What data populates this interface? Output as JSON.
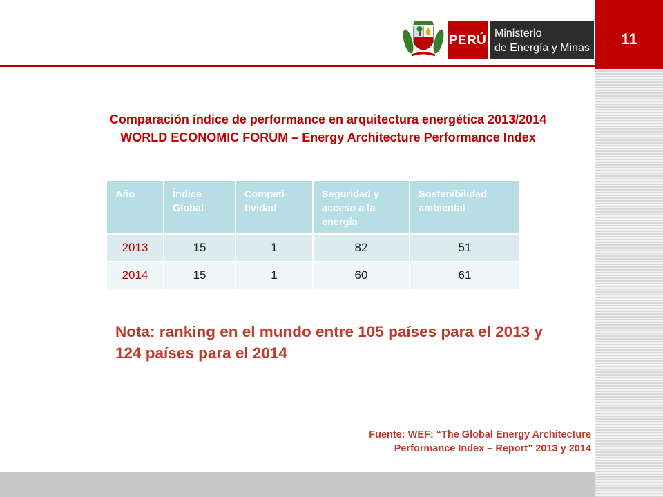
{
  "header": {
    "page_number": "11",
    "logo_country": "PERÚ",
    "logo_ministry_line1": "Ministerio",
    "logo_ministry_line2": "de Energía y Minas"
  },
  "titles": {
    "line1": "Comparación índice de performance en arquitectura energética 2013/2014",
    "line2": "WORLD ECONOMIC FORUM – Energy Architecture Performance Index"
  },
  "table": {
    "columns": [
      "Año",
      "Índice Global",
      "Competi-tividad",
      "Seguridad y acceso a la energía",
      "Sostenibilidad ambiental"
    ],
    "rows": [
      [
        "2013",
        "15",
        "1",
        "82",
        "51"
      ],
      [
        "2014",
        "15",
        "1",
        "60",
        "61"
      ]
    ]
  },
  "note": "Nota: ranking en el mundo entre 105 países para el 2013 y 124 países para el 2014",
  "source": "Fuente: WEF: “The Global Energy Architecture Performance Index – Report” 2013 y 2014",
  "colors": {
    "accent_red": "#c00000",
    "table_header": "#b7dde5",
    "ministry_box": "#2c2c2c"
  }
}
